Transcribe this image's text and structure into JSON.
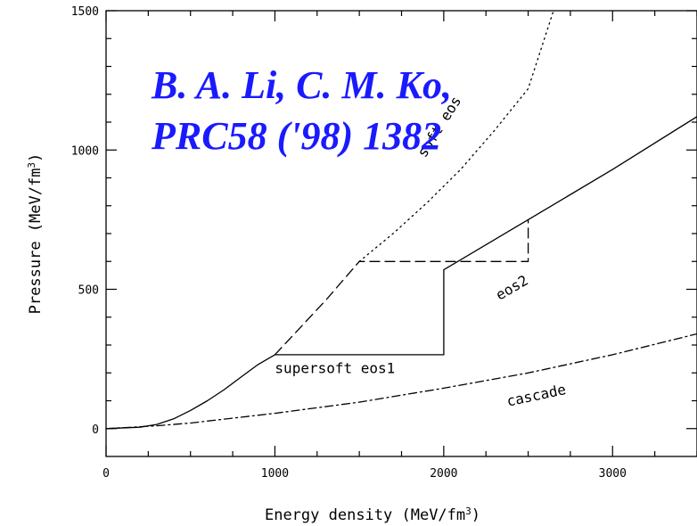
{
  "chart_data": {
    "type": "line",
    "xlabel": "Energy density (MeV/fm",
    "xlabel_sup": "3",
    "xlabel_end": ")",
    "ylabel": "Pressure (MeV/fm",
    "ylabel_sup": "3",
    "ylabel_end": ")",
    "xlim": [
      0,
      3500
    ],
    "ylim": [
      -100,
      1500
    ],
    "xticks": [
      0,
      1000,
      2000,
      3000
    ],
    "yticks": [
      0,
      500,
      1000,
      1500
    ],
    "grid": false,
    "series": [
      {
        "name": "soft eos",
        "style": "dotted",
        "x": [
          1500,
          1700,
          1900,
          2100,
          2300,
          2500,
          2650
        ],
        "y": [
          600,
          700,
          810,
          930,
          1070,
          1220,
          1500
        ]
      },
      {
        "name": "supersoft eos1",
        "style": "solid",
        "x": [
          0,
          200,
          300,
          400,
          500,
          600,
          700,
          800,
          900,
          1000,
          2000,
          2000,
          2500,
          3000,
          3500
        ],
        "y": [
          0,
          5,
          15,
          35,
          65,
          100,
          140,
          185,
          230,
          265,
          265,
          570,
          750,
          930,
          1120
        ]
      },
      {
        "name": "eos2",
        "style": "dashed",
        "x": [
          1000,
          1100,
          1200,
          1300,
          1400,
          1500,
          2500,
          2500
        ],
        "y": [
          265,
          330,
          395,
          460,
          530,
          600,
          600,
          750
        ]
      },
      {
        "name": "cascade",
        "style": "dashdot",
        "x": [
          0,
          300,
          500,
          1000,
          1500,
          2000,
          2500,
          3000,
          3500
        ],
        "y": [
          0,
          10,
          20,
          55,
          95,
          145,
          200,
          265,
          340
        ]
      }
    ],
    "annotations": [
      {
        "text": "soft eos",
        "x": 1890,
        "y": 970,
        "rotation": -58
      },
      {
        "text": "supersoft eos1",
        "x": 1000,
        "y": 200,
        "rotation": 0
      },
      {
        "text": "eos2",
        "x": 2330,
        "y": 460,
        "rotation": -30
      },
      {
        "text": "cascade",
        "x": 2380,
        "y": 80,
        "rotation": -12
      }
    ],
    "citation_line1": "B. A. Li, C. M. Ko,",
    "citation_line2": "PRC58 ('98) 1382",
    "citation_color": "#1a1aff"
  }
}
